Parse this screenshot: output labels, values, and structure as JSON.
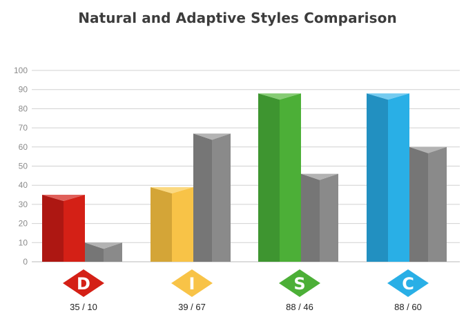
{
  "chart_data": {
    "type": "bar",
    "title": "Natural and Adaptive Styles Comparison",
    "categories": [
      "D",
      "I",
      "S",
      "C"
    ],
    "series": [
      {
        "values": [
          35,
          39,
          88,
          88
        ]
      },
      {
        "values": [
          10,
          67,
          46,
          60
        ]
      }
    ],
    "data_labels": [
      "35 / 10",
      "39 / 67",
      "88 / 46",
      "88 / 60"
    ],
    "yticks": [
      0,
      10,
      20,
      30,
      40,
      50,
      60,
      70,
      80,
      90,
      100
    ],
    "ylim": [
      0,
      100
    ],
    "grid": true,
    "bar_style": "3d",
    "colors": {
      "D": {
        "front": "#d42016",
        "side": "#ad1712",
        "top": "#e0605a"
      },
      "I": {
        "front": "#f8c347",
        "side": "#d4a537",
        "top": "#fbd981"
      },
      "S": {
        "front": "#4caf37",
        "side": "#3e9530",
        "top": "#86cc74"
      },
      "C": {
        "front": "#29afe6",
        "side": "#2290c1",
        "top": "#74cbf0"
      },
      "second": {
        "front": "#8a8a8a",
        "side": "#767676",
        "top": "#b3b3b3"
      },
      "grid": "#d0d0d0",
      "axis": "#b8b8b8"
    }
  }
}
